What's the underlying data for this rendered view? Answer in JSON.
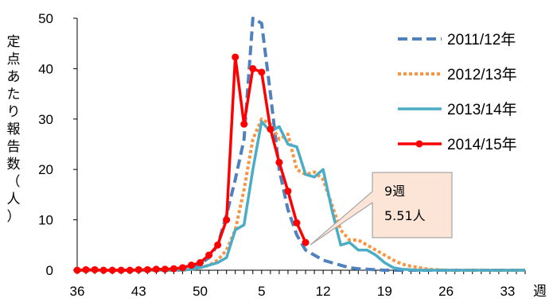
{
  "chart_data": {
    "type": "line",
    "ylabel": "定点あたり報告数（人）",
    "xlabel": "週",
    "ylim": [
      0,
      50
    ],
    "yticks": [
      0,
      10,
      20,
      30,
      40,
      50
    ],
    "x_tick_labels": [
      "36",
      "43",
      "50",
      "5",
      "12",
      "19",
      "26",
      "33"
    ],
    "x_weeks": [
      "36",
      "37",
      "38",
      "39",
      "40",
      "41",
      "42",
      "43",
      "44",
      "45",
      "46",
      "47",
      "48",
      "49",
      "50",
      "51",
      "52",
      "1",
      "2",
      "3",
      "4",
      "5",
      "6",
      "7",
      "8",
      "9",
      "10",
      "11",
      "12",
      "13",
      "14",
      "15",
      "16",
      "17",
      "18",
      "19",
      "20",
      "21",
      "22",
      "23",
      "24",
      "25",
      "26",
      "27",
      "28",
      "29",
      "30",
      "31",
      "32",
      "33",
      "34",
      "35"
    ],
    "grid": false,
    "legend_position": "top-right",
    "series": [
      {
        "name": "2011/12年",
        "color": "#4F81BD",
        "style": "dashed",
        "values": [
          0,
          0,
          0,
          0,
          0,
          0,
          0,
          0,
          0,
          0,
          0,
          0,
          0.3,
          0.5,
          1.2,
          2.5,
          5,
          11,
          18,
          26,
          50,
          49,
          35,
          20,
          12,
          7,
          4,
          3,
          2,
          1.5,
          1,
          0.5,
          0.3,
          0.2,
          0.1,
          0,
          0,
          0,
          0,
          0,
          0,
          0,
          0,
          0,
          0,
          0,
          0,
          0,
          0,
          0,
          0,
          0
        ]
      },
      {
        "name": "2012/13年",
        "color": "#F79646",
        "style": "dotted",
        "values": [
          0,
          0,
          0,
          0,
          0,
          0,
          0,
          0,
          0,
          0,
          0,
          0,
          0,
          0.2,
          0.5,
          1,
          2,
          4,
          8,
          16,
          26,
          30,
          29,
          26,
          27,
          20,
          19,
          19.5,
          18,
          13,
          8,
          6,
          6,
          5,
          4,
          3,
          2,
          1.2,
          0.8,
          0.5,
          0.2,
          0.1,
          0,
          0,
          0,
          0,
          0,
          0,
          0,
          0,
          0,
          0
        ]
      },
      {
        "name": "2013/14年",
        "color": "#4BACC6",
        "style": "solid",
        "values": [
          0,
          0,
          0,
          0,
          0,
          0,
          0,
          0,
          0,
          0,
          0,
          0,
          0,
          0.2,
          0.5,
          1,
          1.5,
          2.5,
          8,
          9,
          20,
          29.5,
          27.5,
          28.5,
          25,
          24.5,
          19,
          18.5,
          20,
          12,
          5,
          5.5,
          4,
          4,
          3,
          1.5,
          0.5,
          0.2,
          0.1,
          0,
          0,
          0,
          0,
          0,
          0,
          0,
          0,
          0,
          0,
          0,
          0,
          0
        ]
      },
      {
        "name": "2014/15年",
        "color": "#FF0000",
        "style": "solid-marker",
        "values": [
          0,
          0.1,
          0.1,
          0,
          0,
          0,
          0,
          0.1,
          0.1,
          0.2,
          0.2,
          0.3,
          0.5,
          1,
          1.5,
          3,
          5,
          10,
          42.3,
          29,
          40,
          39.3,
          28,
          21.4,
          15.7,
          9.4,
          5.51
        ]
      }
    ],
    "annotations": [
      {
        "text_line1": "9週",
        "text_line2": "5.51人",
        "points_to_week": "9",
        "value": 5.51
      }
    ]
  }
}
